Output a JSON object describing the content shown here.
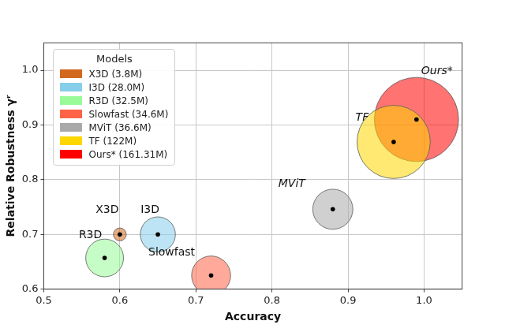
{
  "chart_data": {
    "type": "bubble",
    "xlabel": "Accuracy",
    "ylabel": "Relative Robustness γʳ",
    "legend_title": "Models",
    "legend": "upper left",
    "grid": true,
    "xlim": [
      0.5,
      1.05
    ],
    "ylim": [
      0.6,
      1.05
    ],
    "xticks": [
      0.5,
      0.6,
      0.7,
      0.8,
      0.9,
      {
        "value": 1,
        "label": "1.0"
      }
    ],
    "yticks": [
      0.6,
      0.7,
      0.8,
      0.9,
      {
        "value": 1,
        "label": "1.0"
      }
    ],
    "series": [
      {
        "name": "X3D (3.8M)",
        "label": "X3D",
        "color": "#d2691e",
        "x": [
          0.6
        ],
        "values": [
          0.7
        ],
        "size": [
          3.8
        ]
      },
      {
        "name": "I3D (28.0M)",
        "label": "I3D",
        "color": "#87ceeb",
        "x": [
          0.65
        ],
        "values": [
          0.7
        ],
        "size": [
          28.0
        ]
      },
      {
        "name": "R3D (32.5M)",
        "label": "R3D",
        "color": "#98fb98",
        "x": [
          0.58
        ],
        "values": [
          0.657
        ],
        "size": [
          32.5
        ]
      },
      {
        "name": "Slowfast (34.6M)",
        "label": "Slowfast",
        "color": "#ff6347",
        "x": [
          0.72
        ],
        "values": [
          0.625
        ],
        "size": [
          34.6
        ]
      },
      {
        "name": "MViT (36.6M)",
        "label": "MViT",
        "color": "#a9a9a9",
        "x": [
          0.88
        ],
        "values": [
          0.746
        ],
        "size": [
          36.6
        ]
      },
      {
        "name": "TF (122M)",
        "label": "TF",
        "color": "#ffd700",
        "x": [
          0.96
        ],
        "values": [
          0.869
        ],
        "size": [
          122
        ]
      },
      {
        "name": "Ours* (161.31M)",
        "label": "Ours*",
        "color": "#ff0000",
        "x": [
          0.99
        ],
        "values": [
          0.91
        ],
        "size": [
          161.31
        ]
      }
    ]
  }
}
